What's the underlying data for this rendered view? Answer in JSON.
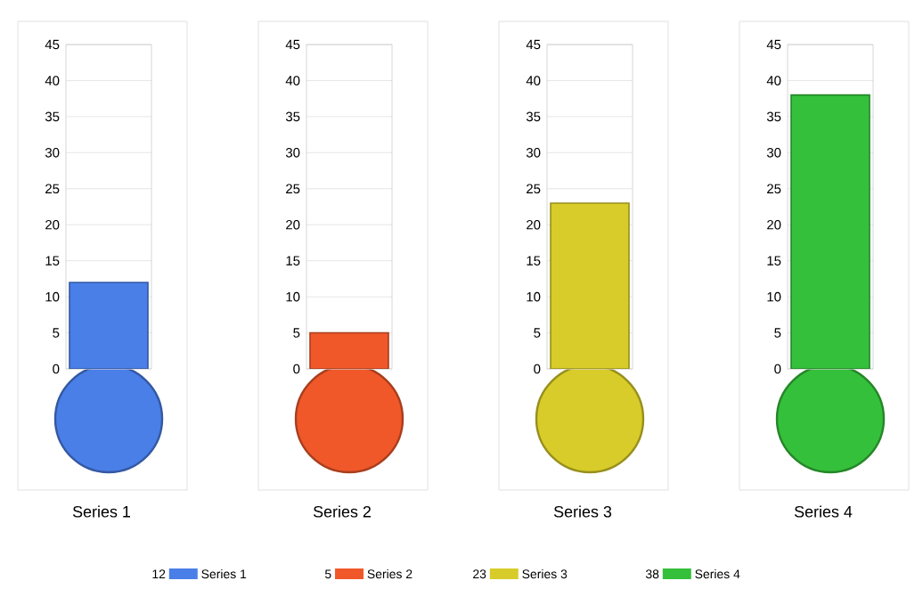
{
  "chart_data": [
    {
      "type": "bar",
      "categories": [
        null
      ],
      "series": [
        {
          "name": "Series 1",
          "color": "#4a7fe8",
          "values": [
            12
          ]
        }
      ],
      "annotations": [
        "12"
      ],
      "ylim": [
        0,
        45
      ],
      "yticks": [
        0,
        5,
        10,
        15,
        20,
        25,
        30,
        35,
        40,
        45
      ],
      "grid": "y",
      "legend": "bottom",
      "tick_labels": "y"
    },
    {
      "type": "bar",
      "categories": [
        null
      ],
      "series": [
        {
          "name": "Series 2",
          "color": "#f0582a",
          "values": [
            5
          ]
        }
      ],
      "annotations": [
        "5"
      ],
      "ylim": [
        0,
        45
      ],
      "yticks": [
        0,
        5,
        10,
        15,
        20,
        25,
        30,
        35,
        40,
        45
      ],
      "grid": "y",
      "legend": "bottom",
      "tick_labels": "y"
    },
    {
      "type": "bar",
      "categories": [
        null
      ],
      "series": [
        {
          "name": "Series 3",
          "color": "#d8cc2a",
          "values": [
            23
          ]
        }
      ],
      "annotations": [
        "23"
      ],
      "ylim": [
        0,
        45
      ],
      "yticks": [
        0,
        5,
        10,
        15,
        20,
        25,
        30,
        35,
        40,
        45
      ],
      "grid": "y",
      "legend": "bottom",
      "tick_labels": "y"
    },
    {
      "type": "bar",
      "categories": [
        null
      ],
      "series": [
        {
          "name": "Series 4",
          "color": "#35c03b",
          "values": [
            38
          ]
        }
      ],
      "annotations": [
        "38"
      ],
      "ylim": [
        0,
        45
      ],
      "yticks": [
        0,
        5,
        10,
        15,
        20,
        25,
        30,
        35,
        40,
        45
      ],
      "grid": "y",
      "legend": "bottom",
      "tick_labels": "y"
    }
  ]
}
